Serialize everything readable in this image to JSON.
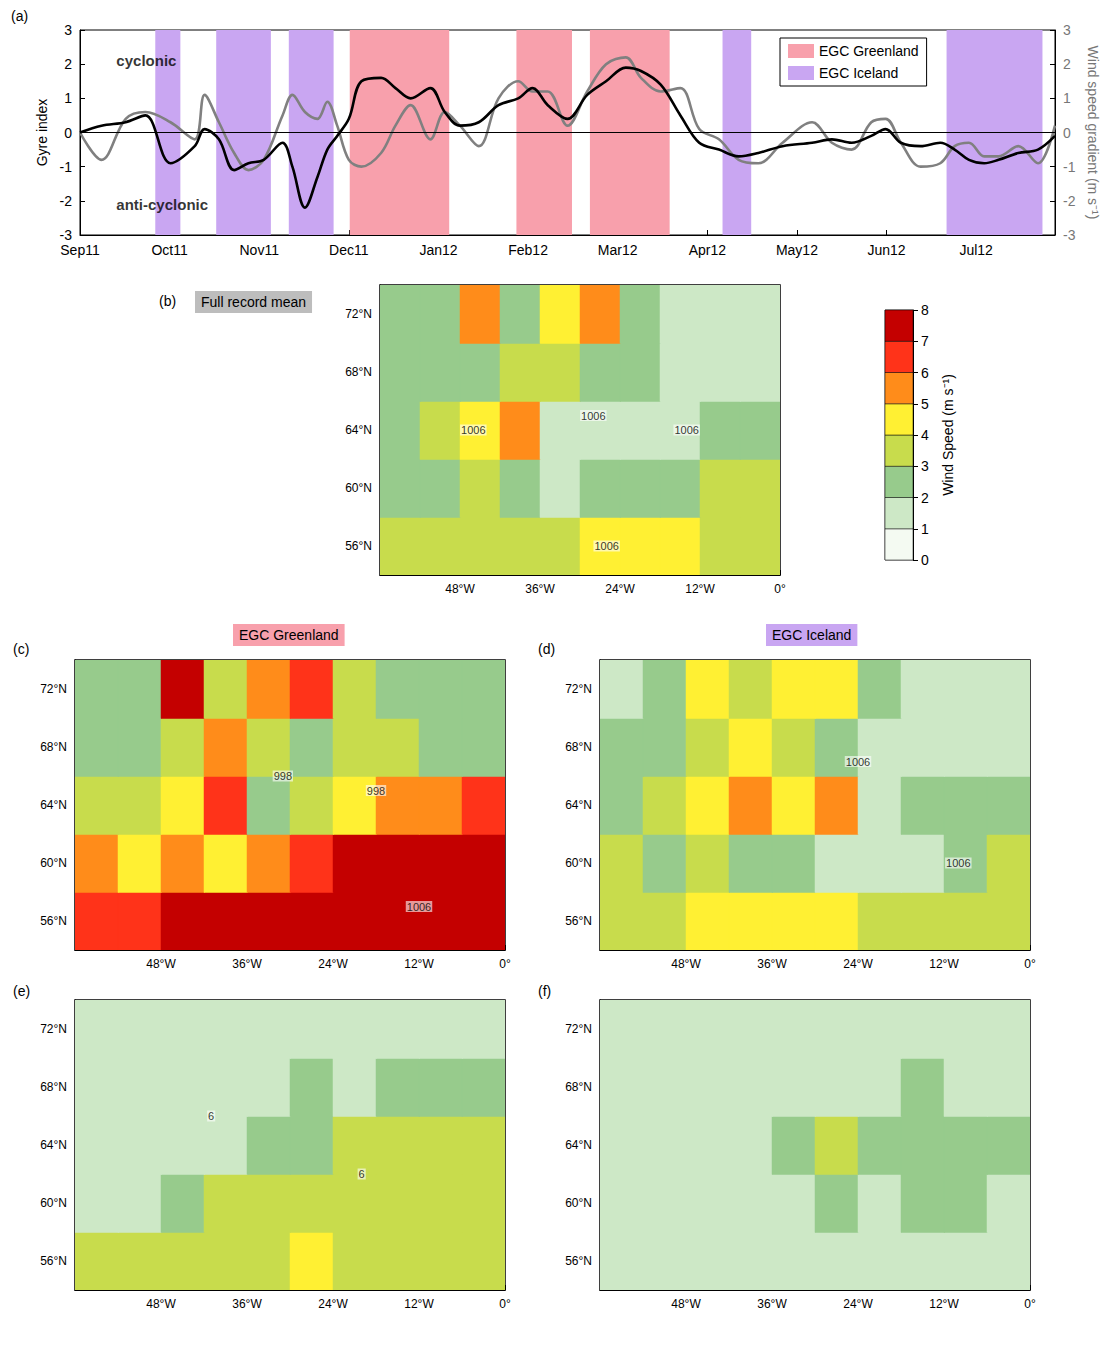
{
  "chart_data": [
    {
      "type": "line",
      "panel_label": "(a)",
      "ylabel": "Gyre index",
      "y2label": "Wind speed gradient (m s⁻¹)",
      "x": [
        0,
        0.24,
        0.51,
        0.73,
        1.01,
        1.28,
        1.39,
        1.55,
        1.72,
        1.88,
        2.05,
        2.26,
        2.37,
        2.51,
        2.65,
        2.76,
        2.87,
        3.0,
        3.14,
        3.36,
        3.52,
        3.69,
        3.91,
        4.07,
        4.24,
        4.45,
        4.67,
        4.89,
        5.05,
        5.22,
        5.44,
        5.66,
        5.87,
        6.09,
        6.26,
        6.48,
        6.7,
        6.91,
        7.13,
        7.35,
        7.57,
        7.84,
        8.17,
        8.39,
        8.61,
        8.83,
        8.99,
        9.16,
        9.38,
        9.6,
        9.76,
        9.92,
        10.09,
        10.25,
        10.47,
        10.69,
        10.88
      ],
      "xlim": [
        0,
        10.88
      ],
      "xticks": [
        {
          "value": 0,
          "label": "Sep11"
        },
        {
          "value": 1,
          "label": "Oct11"
        },
        {
          "value": 2,
          "label": "Nov11"
        },
        {
          "value": 3,
          "label": "Dec11"
        },
        {
          "value": 4,
          "label": "Jan12"
        },
        {
          "value": 5,
          "label": "Feb12"
        },
        {
          "value": 6,
          "label": "Mar12"
        },
        {
          "value": 7,
          "label": "Apr12"
        },
        {
          "value": 8,
          "label": "May12"
        },
        {
          "value": 9,
          "label": "Jun12"
        },
        {
          "value": 10,
          "label": "Jul12"
        }
      ],
      "ylim": [
        -3,
        3
      ],
      "yticks": [
        -3,
        -2,
        -1,
        0,
        1,
        2,
        3
      ],
      "y2lim": [
        -3,
        3
      ],
      "y2ticks": [
        -3,
        -2,
        -1,
        0,
        1,
        2,
        3
      ],
      "reference_line": 0,
      "series": [
        {
          "color": "#000000",
          "values": [
            0,
            0.2,
            0.3,
            0.5,
            -0.9,
            -0.4,
            0.1,
            -0.2,
            -1.1,
            -0.9,
            -0.8,
            -0.3,
            -1.0,
            -2.2,
            -1.3,
            -0.5,
            -0.1,
            0.4,
            1.5,
            1.6,
            1.3,
            1.0,
            1.3,
            0.6,
            0.2,
            0.3,
            0.8,
            1.0,
            1.3,
            0.8,
            0.4,
            1.1,
            1.5,
            1.9,
            1.8,
            1.4,
            0.5,
            -0.3,
            -0.5,
            -0.7,
            -0.6,
            -0.4,
            -0.3,
            -0.2,
            -0.3,
            -0.1,
            0.1,
            -0.3,
            -0.4,
            -0.3,
            -0.5,
            -0.8,
            -0.9,
            -0.8,
            -0.6,
            -0.5,
            -0.1
          ]
        },
        {
          "color": "#808080",
          "axis": "y2",
          "values": [
            0,
            -0.8,
            0.4,
            0.6,
            0.3,
            -0.2,
            1.1,
            0.3,
            -0.6,
            -1.1,
            -0.8,
            0.5,
            1.1,
            0.6,
            0.4,
            0.9,
            0.2,
            -0.8,
            -1.0,
            -0.6,
            0.2,
            0.8,
            -0.2,
            0.6,
            0.2,
            -0.4,
            1.0,
            1.5,
            1.2,
            1.2,
            0.2,
            1.2,
            2.0,
            2.2,
            1.6,
            1.2,
            1.3,
            0.1,
            -0.2,
            -0.8,
            -0.9,
            -0.3,
            0.3,
            -0.3,
            -0.5,
            0.3,
            0.4,
            -0.3,
            -1.0,
            -0.9,
            -0.4,
            -0.3,
            -0.7,
            -0.7,
            -0.4,
            -0.9,
            0.2
          ]
        }
      ],
      "periods": [
        {
          "name": "EGC Greenland",
          "color": "#f8a0ac",
          "ranges": [
            [
              3.01,
              4.12
            ],
            [
              4.87,
              5.49
            ],
            [
              5.69,
              6.58
            ]
          ]
        },
        {
          "name": "EGC Iceland",
          "color": "#c9a6f2",
          "ranges": [
            [
              0.84,
              1.12
            ],
            [
              1.52,
              2.13
            ],
            [
              2.33,
              2.83
            ],
            [
              7.17,
              7.49
            ],
            [
              9.67,
              10.74
            ]
          ]
        }
      ],
      "legend": "upper right",
      "annotations": [
        {
          "text": "cyclonic",
          "x": 0.35,
          "y": 2.1
        },
        {
          "text": "anti-cyclonic",
          "x": 0.35,
          "y": -2.1
        }
      ]
    },
    {
      "type": "heatmap",
      "panel_label": "(b)",
      "title": "Full record mean",
      "xlim": [
        -60,
        0
      ],
      "ylim": [
        54,
        74
      ],
      "xticks": [
        {
          "value": -48,
          "label": "48°W"
        },
        {
          "value": -36,
          "label": "36°W"
        },
        {
          "value": -24,
          "label": "24°W"
        },
        {
          "value": -12,
          "label": "12°W"
        },
        {
          "value": 0,
          "label": "0°"
        }
      ],
      "yticks": [
        {
          "value": 56,
          "label": "56°N"
        },
        {
          "value": 60,
          "label": "60°N"
        },
        {
          "value": 64,
          "label": "64°N"
        },
        {
          "value": 68,
          "label": "68°N"
        },
        {
          "value": 72,
          "label": "72°N"
        }
      ],
      "lon_edges": [
        -60,
        -54,
        -48,
        -42,
        -36,
        -30,
        -24,
        -18,
        -12,
        -6,
        0
      ],
      "lat_edges": [
        54,
        58,
        62,
        66,
        70,
        74
      ],
      "wind_speed": [
        [
          3,
          3,
          3,
          3.5,
          3.5,
          4,
          4,
          4,
          3.5,
          3
        ],
        [
          2.5,
          2,
          3,
          2,
          1.5,
          2,
          2.5,
          2.5,
          3,
          3
        ],
        [
          2,
          3,
          4,
          5,
          1.5,
          1.5,
          1,
          1.5,
          2,
          2
        ],
        [
          2,
          2,
          2.5,
          3.5,
          3,
          2,
          2,
          1,
          1,
          1.5
        ],
        [
          2,
          2,
          5,
          2,
          4,
          5,
          2,
          1,
          1,
          1.5
        ]
      ],
      "annotations": [
        {
          "text": "1006",
          "lon": -46,
          "lat": 64
        },
        {
          "text": "1006",
          "lon": -28,
          "lat": 65
        },
        {
          "text": "1006",
          "lon": -14,
          "lat": 64
        },
        {
          "text": "1006",
          "lon": -26,
          "lat": 56
        }
      ]
    },
    {
      "type": "heatmap",
      "panel_label": "(c)",
      "title": "EGC Greenland",
      "xlim": [
        -60,
        0
      ],
      "ylim": [
        54,
        74
      ],
      "xticks": [
        {
          "value": -48,
          "label": "48°W"
        },
        {
          "value": -36,
          "label": "36°W"
        },
        {
          "value": -24,
          "label": "24°W"
        },
        {
          "value": -12,
          "label": "12°W"
        },
        {
          "value": 0,
          "label": "0°"
        }
      ],
      "yticks": [
        {
          "value": 56,
          "label": "56°N"
        },
        {
          "value": 60,
          "label": "60°N"
        },
        {
          "value": 64,
          "label": "64°N"
        },
        {
          "value": 68,
          "label": "68°N"
        },
        {
          "value": 72,
          "label": "72°N"
        }
      ],
      "lon_edges": [
        -60,
        -54,
        -48,
        -42,
        -36,
        -30,
        -24,
        -18,
        -12,
        -6,
        0
      ],
      "lat_edges": [
        54,
        58,
        62,
        66,
        70,
        74
      ],
      "wind_speed": [
        [
          6,
          6.5,
          7,
          7.5,
          7.5,
          7.5,
          7.5,
          7.5,
          7.5,
          7
        ],
        [
          5.5,
          4.5,
          5,
          4,
          5,
          6,
          7,
          7.5,
          7.5,
          7
        ],
        [
          3,
          3,
          4,
          6,
          2.5,
          3,
          4,
          5,
          5,
          6
        ],
        [
          2.5,
          2.5,
          3,
          5,
          3,
          2,
          3,
          3,
          2,
          2
        ],
        [
          2,
          2.5,
          7,
          3,
          5,
          6,
          3,
          2,
          2,
          2
        ]
      ],
      "annotations": [
        {
          "text": "998",
          "lon": -31,
          "lat": 66
        },
        {
          "text": "998",
          "lon": -18,
          "lat": 65
        },
        {
          "text": "1006",
          "lon": -12,
          "lat": 57
        }
      ]
    },
    {
      "type": "heatmap",
      "panel_label": "(d)",
      "title": "EGC Iceland",
      "xlim": [
        -60,
        0
      ],
      "ylim": [
        54,
        74
      ],
      "xticks": [
        {
          "value": -48,
          "label": "48°W"
        },
        {
          "value": -36,
          "label": "36°W"
        },
        {
          "value": -24,
          "label": "24°W"
        },
        {
          "value": -12,
          "label": "12°W"
        },
        {
          "value": 0,
          "label": "0°"
        }
      ],
      "yticks": [
        {
          "value": 56,
          "label": "56°N"
        },
        {
          "value": 60,
          "label": "60°N"
        },
        {
          "value": 64,
          "label": "64°N"
        },
        {
          "value": 68,
          "label": "68°N"
        },
        {
          "value": 72,
          "label": "72°N"
        }
      ],
      "lon_edges": [
        -60,
        -54,
        -48,
        -42,
        -36,
        -30,
        -24,
        -18,
        -12,
        -6,
        0
      ],
      "lat_edges": [
        54,
        58,
        62,
        66,
        70,
        74
      ],
      "wind_speed": [
        [
          3,
          3.5,
          4,
          4.5,
          4.5,
          4,
          3.5,
          3,
          3,
          3
        ],
        [
          3,
          2.5,
          3,
          2.5,
          2.5,
          1.5,
          1,
          1.5,
          2.5,
          3
        ],
        [
          2,
          3,
          4,
          5,
          4.5,
          5,
          1,
          2,
          2,
          2
        ],
        [
          2,
          2,
          3,
          4,
          3,
          2,
          1.5,
          1,
          1,
          1
        ],
        [
          1.5,
          2,
          4.5,
          3,
          4,
          4,
          2,
          1,
          1,
          1
        ]
      ],
      "annotations": [
        {
          "text": "1006",
          "lon": -24,
          "lat": 67
        },
        {
          "text": "1006",
          "lon": -10,
          "lat": 60
        }
      ]
    },
    {
      "type": "heatmap",
      "panel_label": "(e)",
      "xlim": [
        -60,
        0
      ],
      "ylim": [
        54,
        74
      ],
      "xticks": [
        {
          "value": -48,
          "label": "48°W"
        },
        {
          "value": -36,
          "label": "36°W"
        },
        {
          "value": -24,
          "label": "24°W"
        },
        {
          "value": -12,
          "label": "12°W"
        },
        {
          "value": 0,
          "label": "0°"
        }
      ],
      "yticks": [
        {
          "value": 56,
          "label": "56°N"
        },
        {
          "value": 60,
          "label": "60°N"
        },
        {
          "value": 64,
          "label": "64°N"
        },
        {
          "value": 68,
          "label": "68°N"
        },
        {
          "value": 72,
          "label": "72°N"
        }
      ],
      "lon_edges": [
        -60,
        -54,
        -48,
        -42,
        -36,
        -30,
        -24,
        -18,
        -12,
        -6,
        0
      ],
      "lat_edges": [
        54,
        58,
        62,
        66,
        70,
        74
      ],
      "wind_speed": [
        [
          3,
          3,
          3,
          3.5,
          3.5,
          4,
          3.5,
          3.5,
          3,
          3
        ],
        [
          1,
          1,
          2,
          3,
          3,
          3.5,
          3.5,
          3,
          3,
          3
        ],
        [
          1,
          1,
          1.5,
          1.5,
          2,
          2.5,
          3,
          3.5,
          3,
          3
        ],
        [
          1,
          1,
          1,
          1,
          1,
          2,
          1.5,
          2,
          2,
          2
        ],
        [
          1,
          1,
          1,
          1,
          1.5,
          1,
          1,
          1,
          1,
          1
        ]
      ],
      "annotations": [
        {
          "text": "6",
          "lon": -41,
          "lat": 66
        },
        {
          "text": "6",
          "lon": -20,
          "lat": 62
        }
      ]
    },
    {
      "type": "heatmap",
      "panel_label": "(f)",
      "xlim": [
        -60,
        0
      ],
      "ylim": [
        54,
        74
      ],
      "xticks": [
        {
          "value": -48,
          "label": "48°W"
        },
        {
          "value": -36,
          "label": "36°W"
        },
        {
          "value": -24,
          "label": "24°W"
        },
        {
          "value": -12,
          "label": "12°W"
        },
        {
          "value": 0,
          "label": "0°"
        }
      ],
      "yticks": [
        {
          "value": 56,
          "label": "56°N"
        },
        {
          "value": 60,
          "label": "60°N"
        },
        {
          "value": 64,
          "label": "64°N"
        },
        {
          "value": 68,
          "label": "68°N"
        },
        {
          "value": 72,
          "label": "72°N"
        }
      ],
      "lon_edges": [
        -60,
        -54,
        -48,
        -42,
        -36,
        -30,
        -24,
        -18,
        -12,
        -6,
        0
      ],
      "lat_edges": [
        54,
        58,
        62,
        66,
        70,
        74
      ],
      "wind_speed": [
        [
          1,
          1,
          1,
          1,
          1,
          1.5,
          1.5,
          1,
          1,
          1
        ],
        [
          1,
          1,
          1,
          1,
          1.5,
          2,
          1.5,
          2,
          2,
          1.5
        ],
        [
          1,
          1,
          1,
          1.5,
          2,
          3,
          2.5,
          2,
          2,
          2
        ],
        [
          1,
          1,
          1,
          1,
          1.5,
          1.5,
          1.5,
          2,
          1.5,
          1.5
        ],
        [
          1,
          1,
          1.5,
          1,
          1,
          1,
          1,
          1.5,
          1,
          1
        ]
      ],
      "annotations": []
    },
    {
      "type": "colorbar",
      "label": "Wind Speed (m s⁻¹)",
      "ylim": [
        0,
        8
      ],
      "yticks": [
        0,
        1,
        2,
        3,
        4,
        5,
        6,
        7,
        8
      ],
      "colors": [
        "#f4faf2",
        "#cde8c6",
        "#97cb8c",
        "#c8dc4c",
        "#fff033",
        "#ff8c1a",
        "#ff3319",
        "#c40000"
      ]
    }
  ]
}
